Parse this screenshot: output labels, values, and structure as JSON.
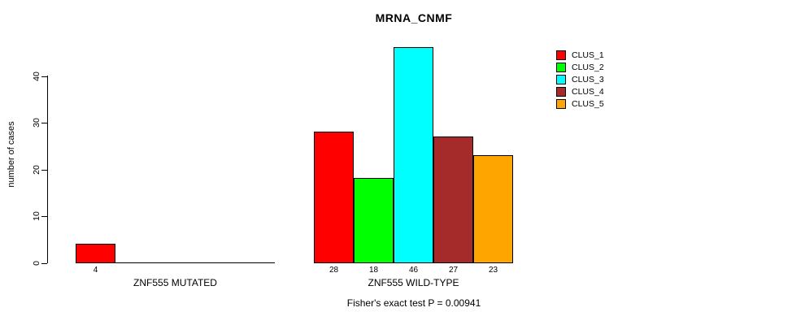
{
  "title": "MRNA_CNMF",
  "subtitle": "Fisher's exact test P = 0.00941",
  "y_axis": {
    "label": "number of cases",
    "ticks": [
      0,
      10,
      20,
      30,
      40
    ]
  },
  "legend": {
    "items": [
      {
        "label": "CLUS_1",
        "color": "#FF0000"
      },
      {
        "label": "CLUS_2",
        "color": "#00FF00"
      },
      {
        "label": "CLUS_3",
        "color": "#00FFFF"
      },
      {
        "label": "CLUS_4",
        "color": "#A52A2A"
      },
      {
        "label": "CLUS_5",
        "color": "#FFA500"
      }
    ]
  },
  "chart_data": {
    "type": "bar",
    "title": "MRNA_CNMF",
    "xlabel": "",
    "ylabel": "number of cases",
    "ylim": [
      0,
      46
    ],
    "y_ticks": [
      0,
      10,
      20,
      30,
      40
    ],
    "grid": false,
    "legend_position": "top-right-outside",
    "series_labels": [
      "CLUS_1",
      "CLUS_2",
      "CLUS_3",
      "CLUS_4",
      "CLUS_5"
    ],
    "series_colors": [
      "#FF0000",
      "#00FF00",
      "#00FFFF",
      "#A52A2A",
      "#FFA500"
    ],
    "groups": [
      {
        "label": "ZNF555 MUTATED",
        "values": [
          4,
          0,
          0,
          0,
          0
        ]
      },
      {
        "label": "ZNF555 WILD-TYPE",
        "values": [
          28,
          18,
          46,
          27,
          23
        ]
      }
    ],
    "bar_value_labels_shown": true,
    "annotation": "Fisher's exact test P = 0.00941"
  }
}
